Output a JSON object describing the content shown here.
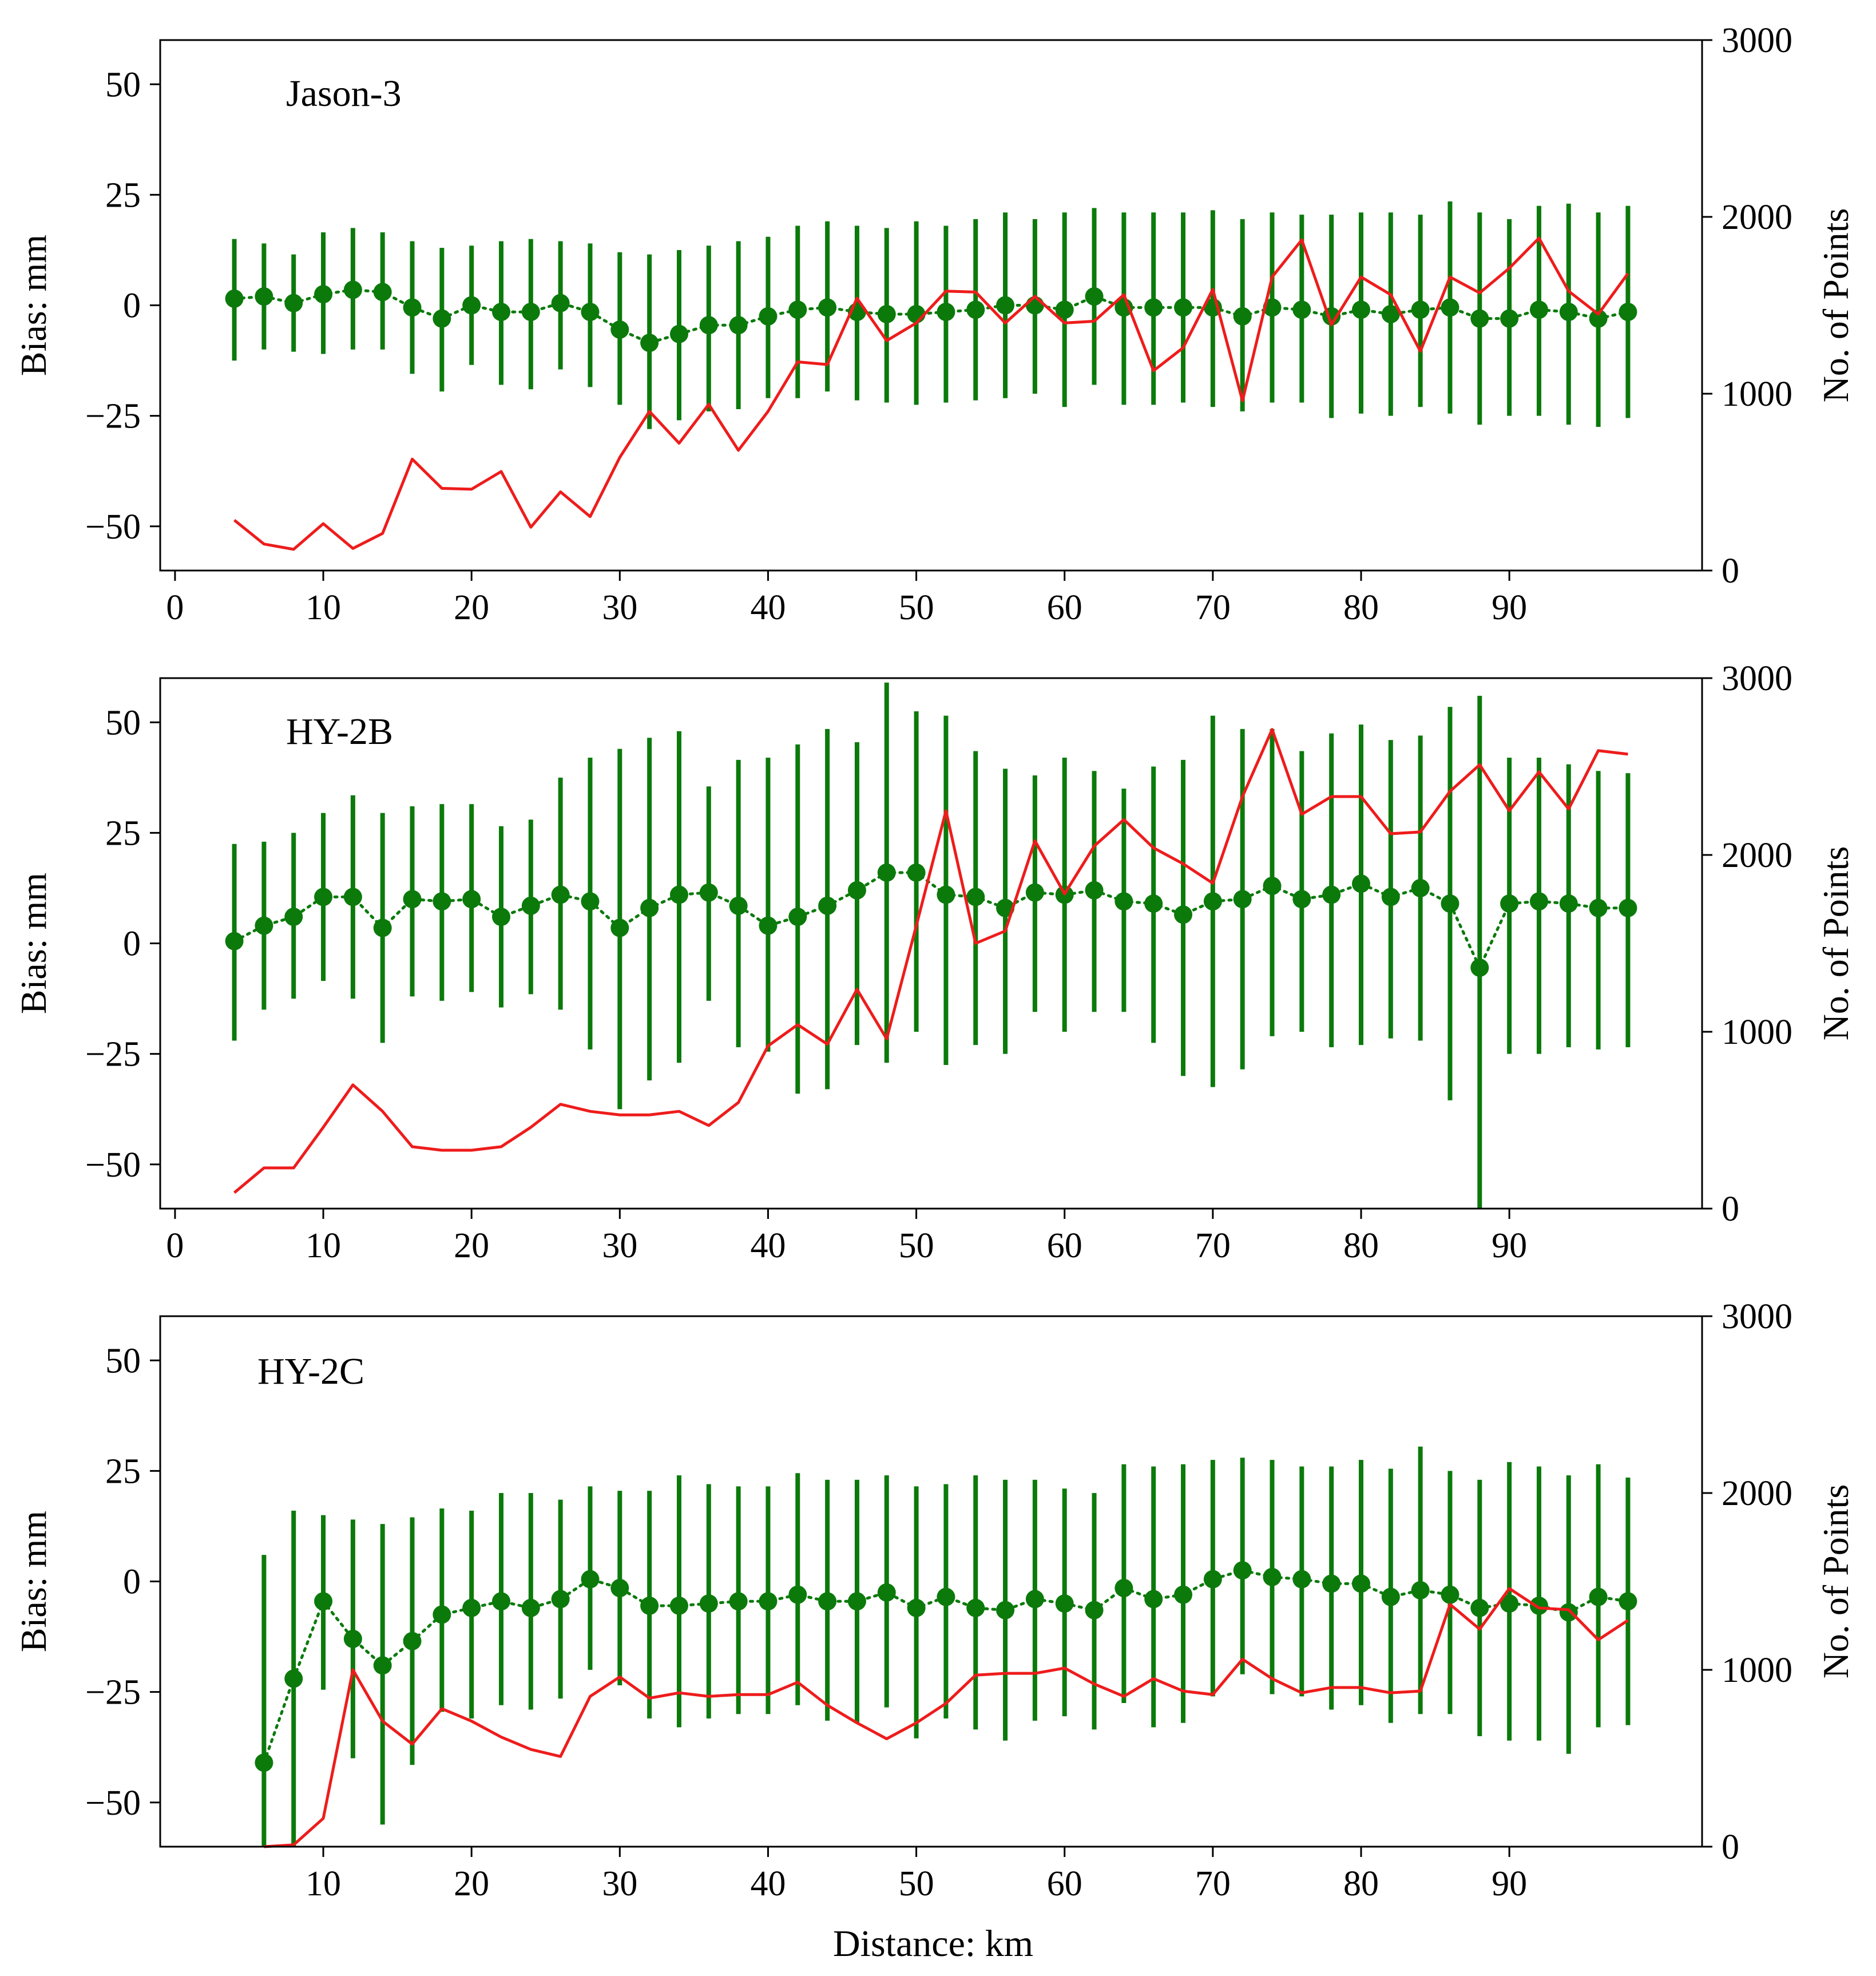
{
  "chart_data": [
    {
      "type": "line",
      "title": "Jason-3",
      "xlabel": "",
      "ylabel": "Bias: mm",
      "y2label": "No. of Points",
      "xlim": [
        -1,
        103
      ],
      "ylim": [
        -60,
        60
      ],
      "y2lim": [
        0,
        3000
      ],
      "xticks": [
        "0",
        "10",
        "20",
        "30",
        "40",
        "50",
        "60",
        "70",
        "80",
        "90"
      ],
      "yticks": [
        "50",
        "25",
        "0",
        "−25",
        "−50"
      ],
      "y2ticks": [
        "3000",
        "2000",
        "1000",
        "0"
      ],
      "series": [
        {
          "name": "Bias",
          "color": "#0b7a0b",
          "x": [
            4,
            6,
            8,
            10,
            12,
            14,
            16,
            18,
            20,
            22,
            24,
            26,
            28,
            30,
            32,
            34,
            36,
            38,
            40,
            42,
            44,
            46,
            48,
            50,
            52,
            54,
            56,
            58,
            60,
            62,
            64,
            66,
            68,
            70,
            72,
            74,
            76,
            78,
            80,
            82,
            84,
            86,
            88,
            90,
            92,
            94,
            96,
            98
          ],
          "mean": [
            1.5,
            2,
            0.5,
            2.5,
            3.5,
            3,
            -0.5,
            -3,
            0,
            -1.5,
            -1.5,
            0.5,
            -1.5,
            -5.5,
            -8.5,
            -6.5,
            -4.5,
            -4.5,
            -2.5,
            -1,
            -0.5,
            -1.5,
            -2,
            -2,
            -1.5,
            -1,
            0,
            0,
            -1,
            2,
            -0.5,
            -0.5,
            -0.5,
            -0.5,
            -2.5,
            -0.5,
            -1,
            -2.5,
            -1,
            -2,
            -1,
            -0.5,
            -3,
            -3,
            -1,
            -1.5,
            -3,
            -1.5
          ],
          "err_low": [
            -12.5,
            -10,
            -10.5,
            -11,
            -10,
            -10,
            -15.5,
            -19.5,
            -13.5,
            -18,
            -19,
            -14.5,
            -18.5,
            -22.5,
            -28,
            -26,
            -24,
            -23.5,
            -21,
            -21,
            -19.5,
            -21.5,
            -22,
            -22.5,
            -22,
            -21.5,
            -21,
            -20,
            -23,
            -18,
            -22.5,
            -22.5,
            -22,
            -23,
            -24,
            -22,
            -22,
            -25.5,
            -24.5,
            -25,
            -23,
            -24.5,
            -27,
            -25,
            -25,
            -27,
            -27.5,
            -25.5
          ],
          "err_high": [
            15,
            14,
            11.5,
            16.5,
            17.5,
            16.5,
            14.5,
            13,
            13.5,
            14.5,
            15,
            14.5,
            14,
            12,
            11.5,
            12.5,
            13.5,
            14.5,
            15.5,
            18,
            19,
            18,
            17.5,
            19,
            18,
            19.5,
            21,
            19.5,
            21,
            22,
            21,
            21,
            21,
            21.5,
            19.5,
            21,
            20.5,
            20.5,
            21,
            21,
            20.5,
            23.5,
            21,
            19.5,
            22.5,
            23,
            21,
            22.5
          ]
        },
        {
          "name": "No. of Points",
          "color": "#ee1c1c",
          "axis": "right",
          "x": [
            4,
            6,
            8,
            10,
            12,
            14,
            16,
            18,
            20,
            22,
            24,
            26,
            28,
            30,
            32,
            34,
            36,
            38,
            40,
            42,
            44,
            46,
            48,
            50,
            52,
            54,
            56,
            58,
            60,
            62,
            64,
            66,
            68,
            70,
            72,
            74,
            76,
            78,
            80,
            82,
            84,
            86,
            88,
            90,
            92,
            94,
            96,
            98
          ],
          "values": [
            285,
            150,
            120,
            265,
            125,
            210,
            630,
            465,
            460,
            560,
            245,
            445,
            305,
            640,
            900,
            720,
            940,
            680,
            900,
            1180,
            1165,
            1540,
            1300,
            1400,
            1580,
            1575,
            1400,
            1550,
            1400,
            1410,
            1560,
            1130,
            1260,
            1590,
            960,
            1660,
            1870,
            1390,
            1660,
            1560,
            1240,
            1660,
            1570,
            1710,
            1880,
            1580,
            1450,
            1680
          ]
        }
      ]
    },
    {
      "type": "line",
      "title": "HY-2B",
      "xlabel": "",
      "ylabel": "Bias: mm",
      "y2label": "No. of Points",
      "xlim": [
        -1,
        103
      ],
      "ylim": [
        -60,
        60
      ],
      "y2lim": [
        0,
        3000
      ],
      "xticks": [
        "0",
        "10",
        "20",
        "30",
        "40",
        "50",
        "60",
        "70",
        "80",
        "90"
      ],
      "yticks": [
        "50",
        "25",
        "0",
        "−25",
        "−50"
      ],
      "y2ticks": [
        "3000",
        "2000",
        "1000",
        "0"
      ],
      "series": [
        {
          "name": "Bias",
          "color": "#0b7a0b",
          "x": [
            4,
            6,
            8,
            10,
            12,
            14,
            16,
            18,
            20,
            22,
            24,
            26,
            28,
            30,
            32,
            34,
            36,
            38,
            40,
            42,
            44,
            46,
            48,
            50,
            52,
            54,
            56,
            58,
            60,
            62,
            64,
            66,
            68,
            70,
            72,
            74,
            76,
            78,
            80,
            82,
            84,
            86,
            88,
            90,
            92,
            94,
            96,
            98
          ],
          "mean": [
            0.5,
            4,
            6,
            10.5,
            10.5,
            3.5,
            10,
            9.5,
            10,
            6,
            8.5,
            11,
            9.5,
            3.5,
            8,
            11,
            11.5,
            8.5,
            4,
            6,
            8.5,
            12,
            16,
            16,
            11,
            10.5,
            8,
            11.5,
            11,
            12,
            9.5,
            9,
            6.5,
            9.5,
            10,
            13,
            10,
            11,
            13.5,
            10.5,
            12.5,
            9,
            -5.5,
            9,
            9.5,
            9,
            8,
            8
          ],
          "err_low": [
            -22,
            -15,
            -12.5,
            -8.5,
            -12.5,
            -22.5,
            -12,
            -13,
            -11,
            -14.5,
            -11.5,
            -15,
            -24,
            -37.5,
            -31,
            -27,
            -13,
            -23.5,
            -24.5,
            -34,
            -33,
            -23,
            -27,
            -20,
            -27.5,
            -23,
            -25,
            -15.5,
            -20,
            -15.5,
            -15.5,
            -22.5,
            -30,
            -32.5,
            -28.5,
            -21,
            -20,
            -23.5,
            -23,
            -21.5,
            -22,
            -35.5,
            -60,
            -25,
            -25,
            -23.5,
            -24,
            -23.5
          ],
          "err_high": [
            22.5,
            23,
            25,
            29.5,
            33.5,
            29.5,
            31,
            31.5,
            31.5,
            26.5,
            28,
            37.5,
            42,
            44,
            46.5,
            48,
            35.5,
            41.5,
            42,
            45,
            48.5,
            45.5,
            59,
            52.5,
            51.5,
            43.5,
            39.5,
            38,
            42,
            39,
            35,
            40,
            41.5,
            51.5,
            48.5,
            48.5,
            43.5,
            47.5,
            49.5,
            46,
            47,
            53.5,
            56,
            42,
            42,
            40.5,
            39,
            38.5
          ]
        },
        {
          "name": "No. of Points",
          "color": "#ee1c1c",
          "axis": "right",
          "x": [
            4,
            6,
            8,
            10,
            12,
            14,
            16,
            18,
            20,
            22,
            24,
            26,
            28,
            30,
            32,
            34,
            36,
            38,
            40,
            42,
            44,
            46,
            48,
            50,
            52,
            54,
            56,
            58,
            60,
            62,
            64,
            66,
            68,
            70,
            72,
            74,
            76,
            78,
            80,
            82,
            84,
            86,
            88,
            90,
            92,
            94,
            96,
            98
          ],
          "values": [
            90,
            230,
            230,
            460,
            700,
            550,
            350,
            330,
            330,
            350,
            460,
            590,
            550,
            530,
            530,
            550,
            470,
            600,
            920,
            1040,
            930,
            1240,
            960,
            1600,
            2250,
            1500,
            1570,
            2080,
            1780,
            2050,
            2200,
            2040,
            1950,
            1840,
            2330,
            2710,
            2230,
            2330,
            2330,
            2120,
            2130,
            2360,
            2510,
            2250,
            2470,
            2260,
            2590,
            2570
          ]
        }
      ]
    },
    {
      "type": "line",
      "title": "HY-2C",
      "xlabel": "Distance: km",
      "ylabel": "Bias: mm",
      "y2label": "No. of Points",
      "xlim": [
        -1,
        103
      ],
      "ylim": [
        -60,
        60
      ],
      "y2lim": [
        0,
        3000
      ],
      "xticks": [
        "10",
        "20",
        "30",
        "40",
        "50",
        "60",
        "70",
        "80",
        "90"
      ],
      "yticks": [
        "50",
        "25",
        "0",
        "−25",
        "−50"
      ],
      "y2ticks": [
        "3000",
        "2000",
        "1000",
        "0"
      ],
      "series": [
        {
          "name": "Bias",
          "color": "#0b7a0b",
          "x": [
            6,
            8,
            10,
            12,
            14,
            16,
            18,
            20,
            22,
            24,
            26,
            28,
            30,
            32,
            34,
            36,
            38,
            40,
            42,
            44,
            46,
            48,
            50,
            52,
            54,
            56,
            58,
            60,
            62,
            64,
            66,
            68,
            70,
            72,
            74,
            76,
            78,
            80,
            82,
            84,
            86,
            88,
            90,
            92,
            94,
            96,
            98
          ],
          "mean": [
            -41,
            -22,
            -4.5,
            -13,
            -19,
            -13.5,
            -7.5,
            -6,
            -4.5,
            -6,
            -4,
            0.5,
            -1.5,
            -5.5,
            -5.5,
            -5,
            -4.5,
            -4.5,
            -3,
            -4.5,
            -4.5,
            -2.5,
            -6,
            -3.5,
            -6,
            -6.5,
            -4,
            -5,
            -6.5,
            -1.5,
            -4,
            -3,
            0.5,
            2.5,
            1,
            0.5,
            -0.5,
            -0.5,
            -3.5,
            -2,
            -3,
            -6,
            -5,
            -5.5,
            -7,
            -3.5,
            -4.5
          ],
          "err_low": [
            -60,
            -60,
            -24.5,
            -40,
            -55,
            -41.5,
            -29.5,
            -31,
            -28,
            -29,
            -26.5,
            -20,
            -23.5,
            -31,
            -33,
            -31,
            -30,
            -30,
            -28,
            -31.5,
            -32,
            -28.5,
            -35.5,
            -31,
            -33.5,
            -36,
            -31.5,
            -30.5,
            -33.5,
            -27.5,
            -33,
            -32,
            -26,
            -21,
            -25.5,
            -26,
            -29,
            -28,
            -32,
            -30,
            -30,
            -35,
            -36,
            -36,
            -39,
            -33,
            -32.5
          ],
          "err_high": [
            6,
            16,
            15,
            14,
            13,
            14.5,
            16.5,
            16,
            20,
            20,
            18.5,
            21.5,
            20.5,
            20.5,
            24,
            22,
            21.5,
            21.5,
            24.5,
            23,
            23,
            24,
            21.5,
            22,
            24,
            23,
            23,
            21,
            20,
            26.5,
            26,
            26.5,
            27.5,
            28,
            27.5,
            26,
            26,
            27.5,
            25.5,
            30.5,
            25,
            23,
            27,
            26,
            24,
            26.5,
            23.5
          ]
        },
        {
          "name": "No. of Points",
          "color": "#ee1c1c",
          "axis": "right",
          "x": [
            6,
            8,
            10,
            12,
            14,
            16,
            18,
            20,
            22,
            24,
            26,
            28,
            30,
            32,
            34,
            36,
            38,
            40,
            42,
            44,
            46,
            48,
            50,
            52,
            54,
            56,
            58,
            60,
            62,
            64,
            66,
            68,
            70,
            72,
            74,
            76,
            78,
            80,
            82,
            84,
            86,
            88,
            90,
            92,
            94,
            96,
            98
          ],
          "values": [
            0,
            10,
            160,
            1000,
            710,
            580,
            780,
            710,
            620,
            550,
            510,
            850,
            960,
            840,
            870,
            850,
            860,
            860,
            930,
            800,
            700,
            610,
            700,
            810,
            970,
            980,
            980,
            1010,
            920,
            850,
            950,
            880,
            860,
            1060,
            950,
            870,
            900,
            900,
            870,
            880,
            1370,
            1230,
            1460,
            1350,
            1340,
            1170,
            1280
          ]
        }
      ]
    }
  ]
}
